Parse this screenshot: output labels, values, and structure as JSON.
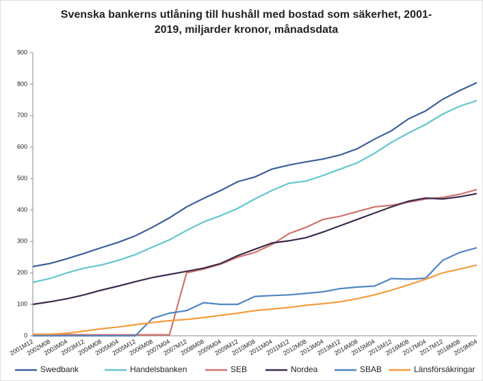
{
  "chart_data": {
    "type": "line",
    "title": [
      "Svenska bankerns utlåning till hushåll med bostad som säkerhet, 2001-",
      "2019, miljarder kronor, månadsdata"
    ],
    "categories": [
      "2001M12",
      "2002M08",
      "2003M04",
      "2003M12",
      "2004M08",
      "2005M04",
      "2005M12",
      "2006M08",
      "2007M04",
      "2007M12",
      "2008M08",
      "2009M04",
      "2009M12",
      "2010M08",
      "2011M04",
      "2011M12",
      "2012M08",
      "2013M04",
      "2013M12",
      "2014M08",
      "2015M04",
      "2015M12",
      "2016M08",
      "2017M04",
      "2017M12",
      "2018M08",
      "2019M04"
    ],
    "series": [
      {
        "name": "Swedbank",
        "color": "#3a5f9a",
        "values": [
          220,
          230,
          245,
          262,
          280,
          297,
          318,
          345,
          375,
          410,
          437,
          462,
          490,
          505,
          530,
          543,
          553,
          562,
          575,
          595,
          625,
          652,
          690,
          715,
          752,
          780,
          805
        ]
      },
      {
        "name": "Handelsbanken",
        "color": "#63c5cd",
        "values": [
          170,
          182,
          200,
          215,
          225,
          240,
          258,
          282,
          305,
          335,
          362,
          382,
          405,
          435,
          462,
          485,
          492,
          510,
          530,
          550,
          580,
          615,
          645,
          672,
          705,
          730,
          748
        ]
      },
      {
        "name": "SEB",
        "color": "#d0726d",
        "values": [
          5,
          4,
          4,
          3,
          3,
          3,
          3,
          3,
          3,
          200,
          212,
          228,
          250,
          265,
          290,
          325,
          345,
          370,
          380,
          395,
          410,
          415,
          425,
          435,
          440,
          450,
          465
        ]
      },
      {
        "name": "Nordea",
        "color": "#3b2a4e",
        "values": [
          100,
          108,
          118,
          130,
          145,
          158,
          172,
          185,
          195,
          205,
          215,
          230,
          255,
          275,
          295,
          302,
          312,
          330,
          350,
          370,
          390,
          410,
          428,
          438,
          435,
          442,
          452
        ]
      },
      {
        "name": "SBAB",
        "color": "#4f85c2",
        "values": [
          0,
          0,
          0,
          0,
          0,
          0,
          0,
          55,
          72,
          80,
          105,
          100,
          100,
          125,
          128,
          130,
          135,
          140,
          150,
          155,
          158,
          182,
          180,
          183,
          240,
          265,
          280
        ]
      },
      {
        "name": "Länsförsäkringar",
        "color": "#f59b3a",
        "values": [
          5,
          5,
          8,
          15,
          22,
          28,
          35,
          42,
          48,
          52,
          58,
          65,
          72,
          80,
          85,
          90,
          97,
          102,
          108,
          118,
          130,
          145,
          162,
          180,
          200,
          212,
          225
        ]
      }
    ],
    "ylim": [
      0,
      900
    ],
    "yticks": [
      0,
      100,
      200,
      300,
      400,
      500,
      600,
      700,
      800,
      900
    ],
    "grid": false,
    "legend": "bottom"
  }
}
